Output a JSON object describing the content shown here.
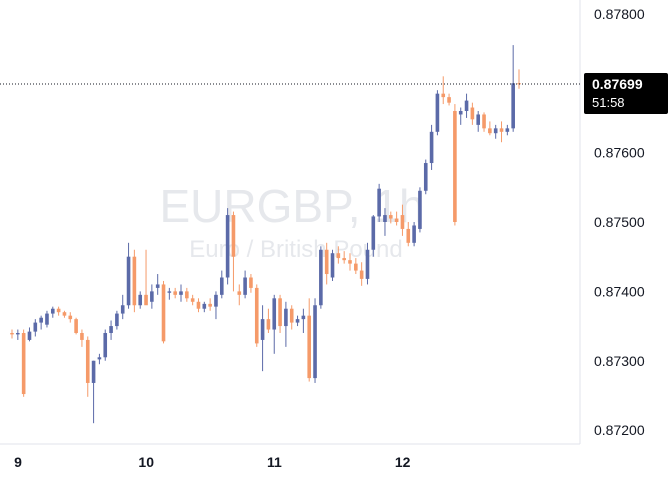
{
  "chart_data": {
    "type": "candlestick",
    "watermark": {
      "symbol": "EURGBP, 1h",
      "description": "Euro / British Pound"
    },
    "x_ticks": [
      "9",
      "10",
      "11",
      "12"
    ],
    "y_ticks": [
      "0.87800",
      "0.87600",
      "0.87500",
      "0.87400",
      "0.87300",
      "0.87200"
    ],
    "ylim": [
      0.8718,
      0.8782
    ],
    "last_price": {
      "value": 0.87699,
      "label": "0.87699",
      "countdown": "51:58"
    },
    "colors": {
      "up": "#5b6aa8",
      "down": "#f59a69",
      "price_tag_bg": "#000000",
      "price_tag_text": "#ffffff",
      "watermark": "#e6e8ec"
    },
    "candles": [
      [
        0.8734,
        0.87345,
        0.87332,
        0.87338
      ],
      [
        0.87338,
        0.87345,
        0.8733,
        0.8734
      ],
      [
        0.8734,
        0.87345,
        0.87248,
        0.87252
      ],
      [
        0.8733,
        0.87348,
        0.87328,
        0.87342
      ],
      [
        0.87342,
        0.8736,
        0.87335,
        0.87355
      ],
      [
        0.87355,
        0.87365,
        0.87345,
        0.87362
      ],
      [
        0.87352,
        0.87372,
        0.87348,
        0.87368
      ],
      [
        0.87368,
        0.87378,
        0.87362,
        0.87375
      ],
      [
        0.87375,
        0.87378,
        0.87365,
        0.8737
      ],
      [
        0.8737,
        0.87372,
        0.87362,
        0.87365
      ],
      [
        0.87365,
        0.8737,
        0.87355,
        0.8736
      ],
      [
        0.8736,
        0.87362,
        0.87338,
        0.8734
      ],
      [
        0.8734,
        0.87345,
        0.8732,
        0.8733
      ],
      [
        0.8733,
        0.87335,
        0.87248,
        0.87268
      ],
      [
        0.87268,
        0.873,
        0.8721,
        0.873
      ],
      [
        0.87302,
        0.8731,
        0.87295,
        0.87305
      ],
      [
        0.87305,
        0.87345,
        0.873,
        0.8734
      ],
      [
        0.8734,
        0.87358,
        0.8733,
        0.8735
      ],
      [
        0.8735,
        0.87372,
        0.87345,
        0.87368
      ],
      [
        0.87368,
        0.87395,
        0.8736,
        0.8738
      ],
      [
        0.8738,
        0.8747,
        0.87375,
        0.8745
      ],
      [
        0.8745,
        0.8746,
        0.8737,
        0.8738
      ],
      [
        0.8738,
        0.874,
        0.87375,
        0.87395
      ],
      [
        0.87395,
        0.8746,
        0.87385,
        0.8738
      ],
      [
        0.87385,
        0.8741,
        0.87375,
        0.874
      ],
      [
        0.87405,
        0.87425,
        0.87395,
        0.8741
      ],
      [
        0.8741,
        0.87415,
        0.87325,
        0.87328
      ],
      [
        0.87398,
        0.87405,
        0.87388,
        0.874
      ],
      [
        0.874,
        0.87405,
        0.8739,
        0.87395
      ],
      [
        0.87395,
        0.8741,
        0.87385,
        0.874
      ],
      [
        0.874,
        0.87405,
        0.87385,
        0.8739
      ],
      [
        0.8739,
        0.87395,
        0.8738,
        0.87385
      ],
      [
        0.87385,
        0.8739,
        0.8737,
        0.87375
      ],
      [
        0.87375,
        0.87385,
        0.8737,
        0.87382
      ],
      [
        0.87382,
        0.8739,
        0.87372,
        0.87378
      ],
      [
        0.87378,
        0.874,
        0.8736,
        0.87395
      ],
      [
        0.87395,
        0.8743,
        0.8739,
        0.8742
      ],
      [
        0.8742,
        0.8752,
        0.8741,
        0.8751
      ],
      [
        0.8751,
        0.87515,
        0.874,
        0.8745
      ],
      [
        0.874,
        0.8741,
        0.8738,
        0.87395
      ],
      [
        0.87395,
        0.8743,
        0.8739,
        0.8742
      ],
      [
        0.8742,
        0.87425,
        0.87398,
        0.87405
      ],
      [
        0.87405,
        0.8741,
        0.8732,
        0.87325
      ],
      [
        0.8733,
        0.8738,
        0.87285,
        0.8736
      ],
      [
        0.8736,
        0.87375,
        0.8734,
        0.87345
      ],
      [
        0.87345,
        0.87395,
        0.8731,
        0.8739
      ],
      [
        0.8739,
        0.87395,
        0.8734,
        0.8735
      ],
      [
        0.8735,
        0.87385,
        0.8732,
        0.87375
      ],
      [
        0.87375,
        0.8738,
        0.87345,
        0.87355
      ],
      [
        0.87355,
        0.87365,
        0.8735,
        0.8736
      ],
      [
        0.8736,
        0.87375,
        0.8734,
        0.87365
      ],
      [
        0.87365,
        0.8739,
        0.8727,
        0.87275
      ],
      [
        0.87275,
        0.8739,
        0.87268,
        0.8738
      ],
      [
        0.8738,
        0.87465,
        0.87375,
        0.8746
      ],
      [
        0.8746,
        0.8747,
        0.8741,
        0.87425
      ],
      [
        0.8742,
        0.8746,
        0.87415,
        0.87455
      ],
      [
        0.87455,
        0.87465,
        0.8744,
        0.87448
      ],
      [
        0.87448,
        0.87458,
        0.8744,
        0.87445
      ],
      [
        0.87445,
        0.87455,
        0.8743,
        0.8744
      ],
      [
        0.8744,
        0.87448,
        0.87425,
        0.8743
      ],
      [
        0.8743,
        0.87442,
        0.87408,
        0.87418
      ],
      [
        0.87418,
        0.8747,
        0.8741,
        0.8746
      ],
      [
        0.8746,
        0.8751,
        0.8745,
        0.87508
      ],
      [
        0.87508,
        0.87555,
        0.875,
        0.87548
      ],
      [
        0.875,
        0.8752,
        0.8748,
        0.8751
      ],
      [
        0.8751,
        0.87515,
        0.87498,
        0.87505
      ],
      [
        0.87505,
        0.87515,
        0.87495,
        0.875
      ],
      [
        0.8751,
        0.87525,
        0.8748,
        0.8749
      ],
      [
        0.8749,
        0.875,
        0.87465,
        0.8747
      ],
      [
        0.8747,
        0.875,
        0.87465,
        0.87495
      ],
      [
        0.8749,
        0.8755,
        0.87485,
        0.87545
      ],
      [
        0.87545,
        0.8759,
        0.8754,
        0.87585
      ],
      [
        0.87585,
        0.8764,
        0.87575,
        0.8763
      ],
      [
        0.8763,
        0.8769,
        0.87625,
        0.87685
      ],
      [
        0.87685,
        0.8771,
        0.8767,
        0.8768
      ],
      [
        0.8768,
        0.87685,
        0.87668,
        0.87672
      ],
      [
        0.8766,
        0.8767,
        0.87495,
        0.875
      ],
      [
        0.87655,
        0.87665,
        0.8764,
        0.8766
      ],
      [
        0.8766,
        0.87685,
        0.8765,
        0.87675
      ],
      [
        0.87665,
        0.87672,
        0.8764,
        0.87648
      ],
      [
        0.8764,
        0.8766,
        0.8763,
        0.87655
      ],
      [
        0.87655,
        0.87658,
        0.8763,
        0.87635
      ],
      [
        0.87635,
        0.87645,
        0.87625,
        0.87628
      ],
      [
        0.87628,
        0.8764,
        0.8762,
        0.87635
      ],
      [
        0.87635,
        0.87645,
        0.87615,
        0.8763
      ],
      [
        0.8763,
        0.8764,
        0.87625,
        0.87635
      ],
      [
        0.87635,
        0.87755,
        0.8763,
        0.877
      ],
      [
        0.877,
        0.8772,
        0.87692,
        0.87699
      ]
    ]
  }
}
